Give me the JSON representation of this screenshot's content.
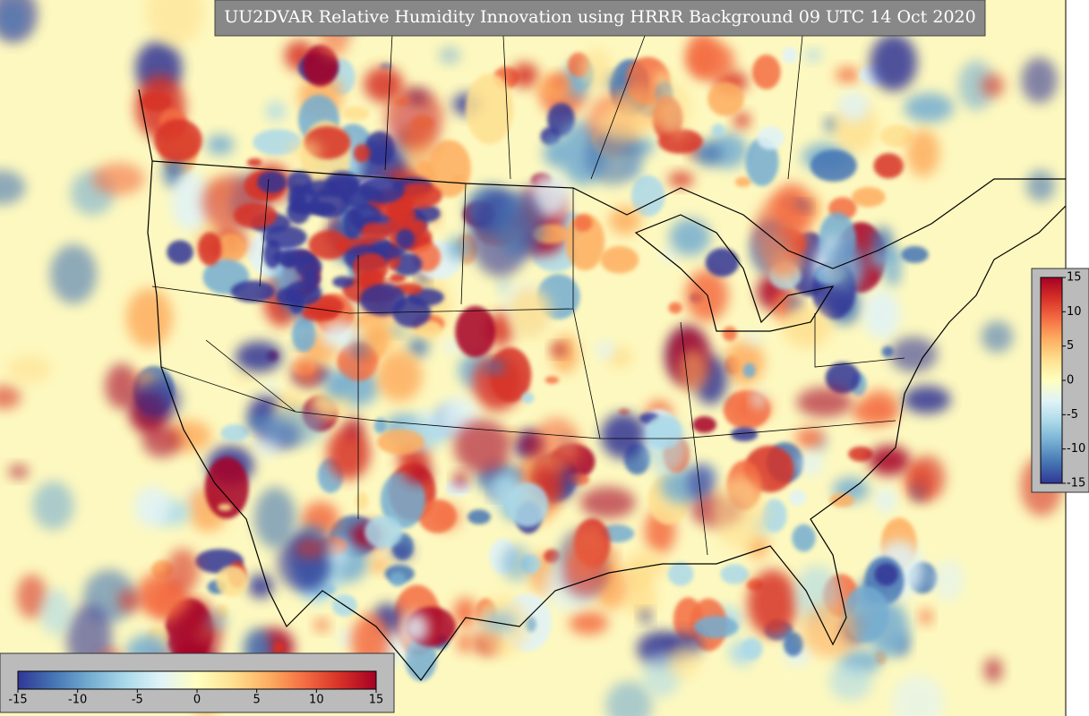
{
  "title": "UU2DVAR Relative Humidity Innovation using HRRR Background 09 UTC 14 Oct 2020",
  "colorbar": {
    "lim": [
      -15,
      15
    ],
    "ticks": [
      -15,
      -10,
      -5,
      0,
      5,
      10,
      15
    ],
    "colors": [
      "#313695",
      "#4575b4",
      "#74add1",
      "#abd9e9",
      "#e0f3f8",
      "#ffffbf",
      "#fee090",
      "#fdae61",
      "#f46d43",
      "#d73027",
      "#a50026"
    ]
  }
}
